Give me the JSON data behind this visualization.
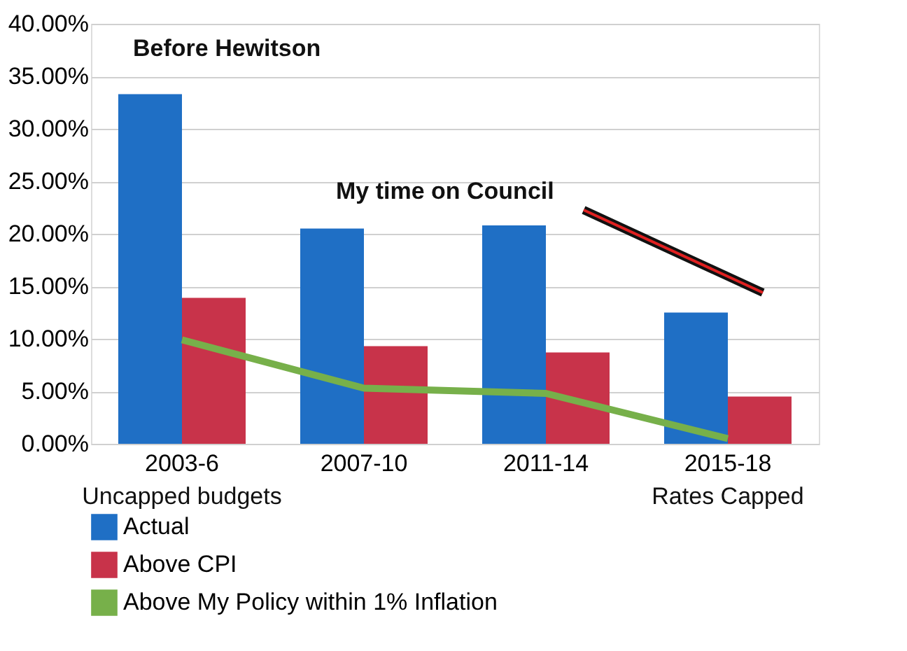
{
  "chart_data": {
    "type": "bar",
    "categories": [
      "2003-6",
      "2007-10",
      "2011-14",
      "2015-18"
    ],
    "series": [
      {
        "name": "Actual",
        "color": "#1f6fc5",
        "values": [
          33.3,
          20.5,
          20.8,
          12.5
        ]
      },
      {
        "name": "Above CPI",
        "color": "#c8334a",
        "values": [
          13.9,
          9.3,
          8.7,
          4.5
        ]
      },
      {
        "name": "Above My Policy within 1% Inflation",
        "color": "#77b04a",
        "type": "line",
        "values": [
          9.9,
          5.3,
          4.8,
          0.5
        ]
      }
    ],
    "ylim": [
      0,
      40
    ],
    "yticks": [
      {
        "value": 0,
        "label": "0.00%"
      },
      {
        "value": 5,
        "label": "5.00%"
      },
      {
        "value": 10,
        "label": "10.00%"
      },
      {
        "value": 15,
        "label": "15.00%"
      },
      {
        "value": 20,
        "label": "20.00%"
      },
      {
        "value": 25,
        "label": "25.00%"
      },
      {
        "value": 30,
        "label": "30.00%"
      },
      {
        "value": 35,
        "label": "35.00%"
      },
      {
        "value": 40,
        "label": "40.00%"
      }
    ],
    "grid": "y",
    "legend": "bottom",
    "marker": "none",
    "annotations": [
      "Before Hewitson",
      "My time on Council",
      "Uncapped budgets",
      "Rates Capped"
    ]
  }
}
